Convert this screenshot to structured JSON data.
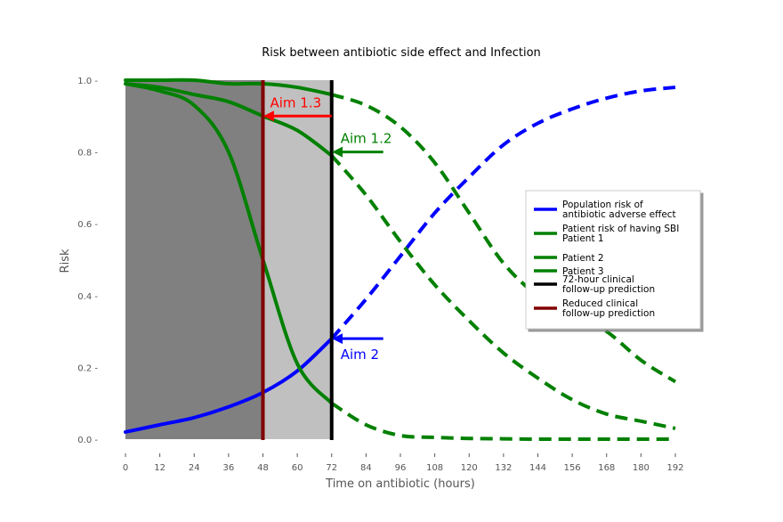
{
  "chart_data": {
    "type": "line",
    "title": "Risk between antibiotic side effect and Infection",
    "xlabel": "Time on antibiotic (hours)",
    "ylabel": "Risk",
    "xlim": [
      0,
      192
    ],
    "ylim": [
      0,
      1
    ],
    "xticks": [
      0,
      12,
      24,
      36,
      48,
      60,
      72,
      84,
      96,
      108,
      120,
      132,
      144,
      156,
      168,
      180,
      192
    ],
    "yticks": [
      0.0,
      0.2,
      0.4,
      0.6,
      0.8,
      1.0
    ],
    "ytick_labels": [
      "0.0 -",
      "0.2 -",
      "0.4 -",
      "0.6 -",
      "0.8 -",
      "1.0 -"
    ],
    "grid": false,
    "shaded_regions": [
      {
        "x": [
          0,
          48
        ],
        "color": "#808080"
      },
      {
        "x": [
          48,
          72
        ],
        "color": "#c0c0c0"
      }
    ],
    "vertical_lines": [
      {
        "x": 72,
        "color": "#000000",
        "label_ref": "72-hour clinical follow-up prediction"
      },
      {
        "x": 48,
        "color": "#800000",
        "label_ref": "Reduced clinical follow-up prediction"
      }
    ],
    "solid_until_x": 72,
    "series": [
      {
        "key": "population",
        "color": "#0000ff",
        "x": [
          0,
          12,
          24,
          36,
          48,
          60,
          72,
          84,
          96,
          108,
          120,
          132,
          144,
          156,
          168,
          180,
          192
        ],
        "values": [
          0.02,
          0.04,
          0.06,
          0.09,
          0.13,
          0.19,
          0.28,
          0.39,
          0.51,
          0.63,
          0.73,
          0.82,
          0.88,
          0.92,
          0.95,
          0.97,
          0.98
        ]
      },
      {
        "key": "patient1",
        "color": "#008000",
        "x": [
          0,
          12,
          24,
          36,
          48,
          60,
          72,
          84,
          96,
          108,
          120,
          132,
          144,
          156,
          168,
          180,
          192
        ],
        "values": [
          1.0,
          1.0,
          1.0,
          0.99,
          0.99,
          0.98,
          0.96,
          0.93,
          0.87,
          0.77,
          0.63,
          0.49,
          0.4,
          0.35,
          0.3,
          0.22,
          0.16
        ]
      },
      {
        "key": "patient2",
        "color": "#008000",
        "x": [
          0,
          12,
          24,
          36,
          48,
          60,
          72,
          84,
          96,
          108,
          120,
          132,
          144,
          156,
          168,
          180,
          192
        ],
        "values": [
          0.99,
          0.98,
          0.96,
          0.94,
          0.9,
          0.86,
          0.79,
          0.68,
          0.55,
          0.43,
          0.33,
          0.24,
          0.17,
          0.11,
          0.07,
          0.05,
          0.03
        ]
      },
      {
        "key": "patient3",
        "color": "#008000",
        "x": [
          0,
          12,
          24,
          36,
          48,
          60,
          72,
          84,
          96,
          108,
          120,
          132,
          144,
          156,
          168,
          180,
          192
        ],
        "values": [
          0.99,
          0.97,
          0.93,
          0.8,
          0.5,
          0.21,
          0.1,
          0.04,
          0.01,
          0.005,
          0.002,
          0.001,
          0.0,
          0.0,
          0.0,
          0.0,
          0.0
        ]
      }
    ],
    "annotations": [
      {
        "text": "Aim 1.3",
        "color": "#ff0000",
        "arrow_from": [
          72,
          0.9
        ],
        "arrow_to": [
          48,
          0.9
        ]
      },
      {
        "text": "Aim 1.2",
        "color": "#008000",
        "arrow_from": [
          90,
          0.8
        ],
        "arrow_to": [
          72,
          0.8
        ]
      },
      {
        "text": "Aim 2",
        "color": "#0000ff",
        "arrow_from": [
          90,
          0.28
        ],
        "arrow_to": [
          72,
          0.28
        ]
      }
    ],
    "legend": {
      "placement": "right",
      "items": [
        {
          "label_lines": [
            "Population risk of",
            "antibiotic adverse effect"
          ],
          "color": "#0000ff"
        },
        {
          "label_lines": [
            "Patient risk of having SBI",
            "Patient 1"
          ],
          "color": "#008000"
        },
        {
          "label_lines": [
            "Patient 2"
          ],
          "color": "#008000"
        },
        {
          "label_lines": [
            "Patient 3"
          ],
          "color": "#008000"
        },
        {
          "label_lines": [
            "72-hour clinical",
            "follow-up prediction"
          ],
          "color": "#000000"
        },
        {
          "label_lines": [
            "Reduced clinical",
            "follow-up prediction"
          ],
          "color": "#800000"
        }
      ]
    }
  }
}
